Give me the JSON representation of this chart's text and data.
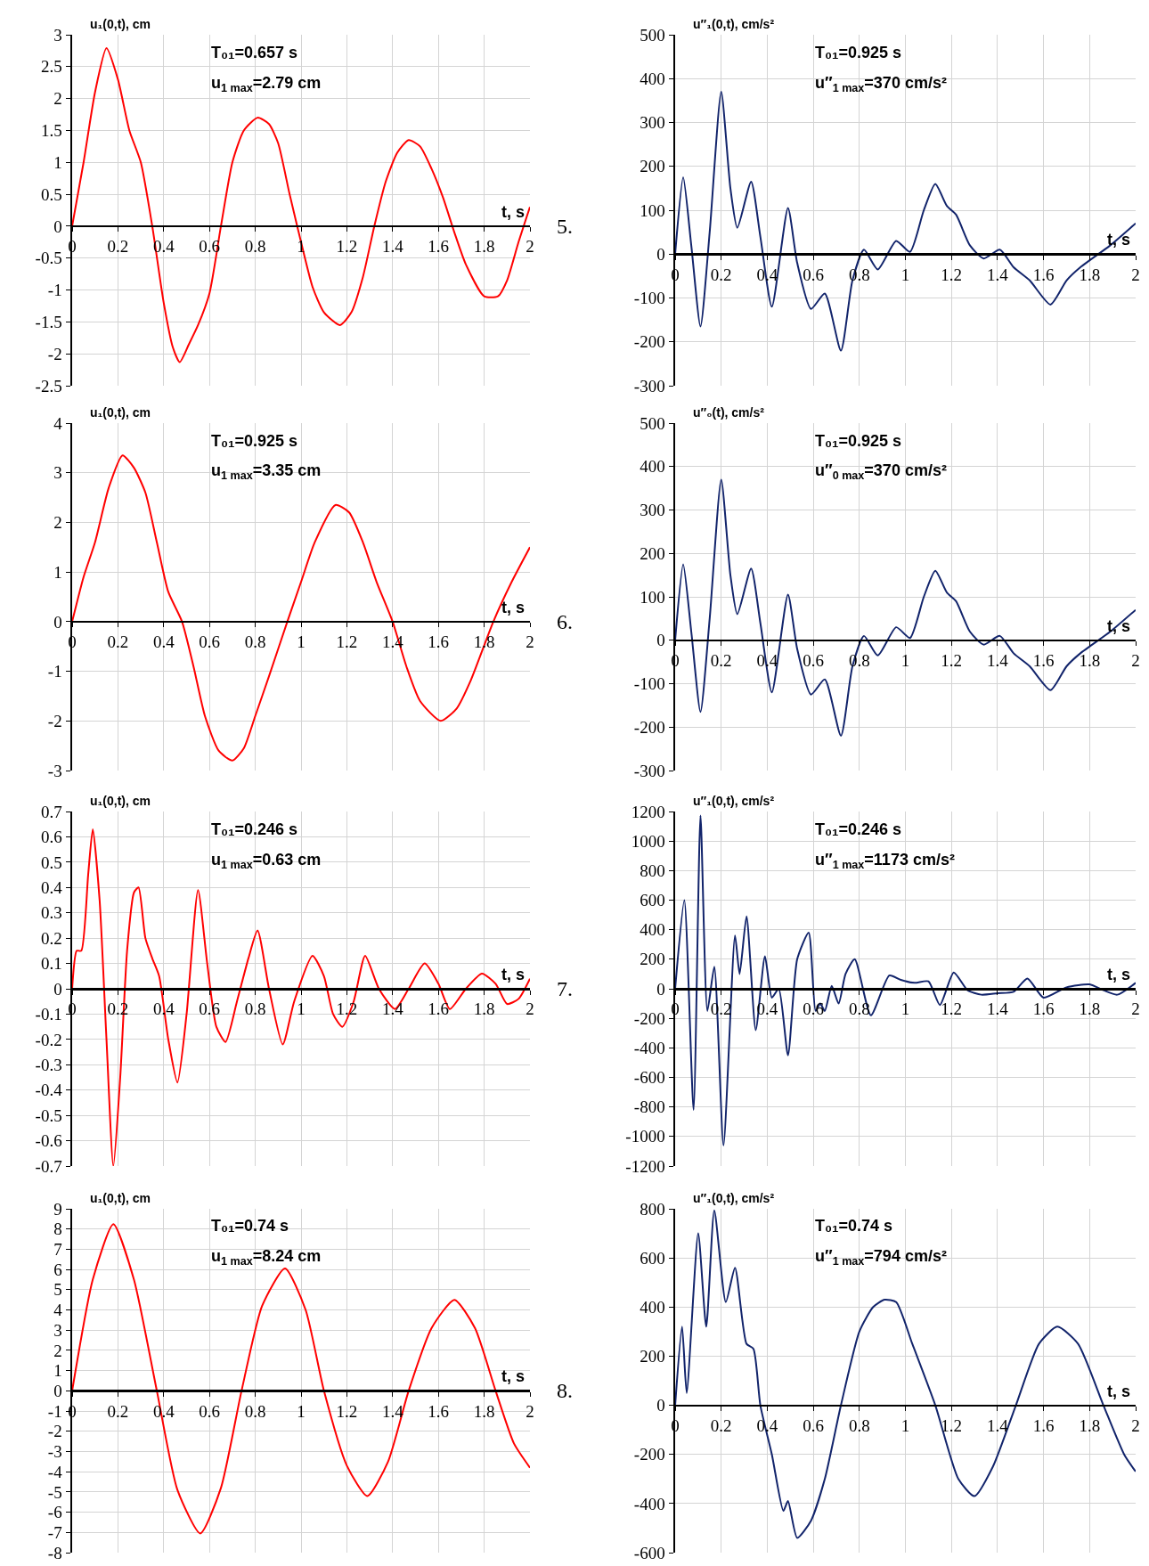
{
  "chart_data": [
    {
      "type": "line",
      "ylabel": "u₁(0,t), cm",
      "xlabel": "t, s",
      "xlim": [
        0,
        2
      ],
      "xticks": [
        0,
        0.2,
        0.4,
        0.6,
        0.8,
        1,
        1.2,
        1.4,
        1.6,
        1.8,
        2
      ],
      "ylim": [
        -2.5,
        3
      ],
      "yticks": [
        -2.5,
        -2,
        -1.5,
        -1,
        -0.5,
        0,
        0.5,
        1,
        1.5,
        2,
        2.5,
        3
      ],
      "grid": true,
      "annotations": [
        "T₀₁=0.657 s",
        "u$_{1 max}$=2.79 cm",
        "5."
      ],
      "series": [
        {
          "color": "#ff0000",
          "x": [
            0,
            0.05,
            0.1,
            0.15,
            0.2,
            0.25,
            0.3,
            0.35,
            0.4,
            0.44,
            0.47,
            0.51,
            0.55,
            0.6,
            0.65,
            0.7,
            0.75,
            0.81,
            0.86,
            0.9,
            0.95,
            1.0,
            1.05,
            1.1,
            1.17,
            1.22,
            1.27,
            1.32,
            1.37,
            1.42,
            1.47,
            1.52,
            1.57,
            1.62,
            1.67,
            1.72,
            1.8,
            1.86,
            1.9,
            1.95,
            2.0
          ],
          "values": [
            0,
            1.0,
            2.1,
            2.79,
            2.3,
            1.5,
            1.0,
            0,
            -1.2,
            -1.9,
            -2.13,
            -1.85,
            -1.55,
            -1.05,
            0,
            1.0,
            1.5,
            1.7,
            1.6,
            1.3,
            0.5,
            -0.25,
            -0.95,
            -1.35,
            -1.55,
            -1.35,
            -0.8,
            0,
            0.7,
            1.15,
            1.35,
            1.25,
            0.9,
            0.45,
            -0.1,
            -0.6,
            -1.1,
            -1.1,
            -0.85,
            -0.25,
            0.3
          ]
        }
      ]
    },
    {
      "type": "line",
      "ylabel": "u″₁(0,t), cm/s²",
      "xlabel": "t, s",
      "xlim": [
        0,
        2
      ],
      "xticks": [
        0,
        0.2,
        0.4,
        0.6,
        0.8,
        1,
        1.2,
        1.4,
        1.6,
        1.8,
        2
      ],
      "ylim": [
        -300,
        500
      ],
      "yticks": [
        -300,
        -200,
        -100,
        0,
        100,
        200,
        300,
        400,
        500
      ],
      "grid": true,
      "annotations": [
        "T₀₁=0.925 s",
        "u″$_{1 max}$=370 cm/s²"
      ],
      "series": [
        {
          "color": "#12246b",
          "x": [
            0,
            0.035,
            0.07,
            0.11,
            0.15,
            0.2,
            0.24,
            0.27,
            0.33,
            0.37,
            0.42,
            0.49,
            0.53,
            0.59,
            0.65,
            0.72,
            0.77,
            0.82,
            0.88,
            0.96,
            1.02,
            1.08,
            1.13,
            1.18,
            1.22,
            1.28,
            1.34,
            1.41,
            1.47,
            1.54,
            1.63,
            1.7,
            1.76,
            1.89,
            2.0
          ],
          "values": [
            0,
            175,
            20,
            -165,
            50,
            370,
            150,
            60,
            165,
            40,
            -120,
            105,
            -20,
            -125,
            -90,
            -220,
            -60,
            10,
            -35,
            30,
            5,
            100,
            160,
            110,
            90,
            20,
            -10,
            10,
            -30,
            -60,
            -115,
            -60,
            -30,
            20,
            70
          ]
        }
      ]
    },
    {
      "type": "line",
      "ylabel": "u₁(0,t), cm",
      "xlabel": "t, s",
      "xlim": [
        0,
        2
      ],
      "xticks": [
        0,
        0.2,
        0.4,
        0.6,
        0.8,
        1,
        1.2,
        1.4,
        1.6,
        1.8,
        2
      ],
      "ylim": [
        -3,
        4
      ],
      "yticks": [
        -3,
        -2,
        -1,
        0,
        1,
        2,
        3,
        4
      ],
      "grid": true,
      "annotations": [
        "T₀₁=0.925 s",
        "u$_{1 max}$=3.35 cm",
        "6."
      ],
      "series": [
        {
          "color": "#ff0000",
          "x": [
            0,
            0.05,
            0.1,
            0.16,
            0.22,
            0.27,
            0.32,
            0.37,
            0.42,
            0.48,
            0.53,
            0.58,
            0.64,
            0.7,
            0.75,
            0.8,
            0.86,
            0.94,
            1.0,
            1.06,
            1.15,
            1.21,
            1.27,
            1.33,
            1.4,
            1.46,
            1.52,
            1.61,
            1.68,
            1.74,
            1.84,
            1.92,
            2.0
          ],
          "values": [
            0,
            0.9,
            1.6,
            2.7,
            3.35,
            3.1,
            2.6,
            1.6,
            0.6,
            0,
            -0.9,
            -1.9,
            -2.6,
            -2.8,
            -2.55,
            -1.9,
            -1.1,
            0,
            0.8,
            1.6,
            2.35,
            2.2,
            1.6,
            0.8,
            0,
            -0.9,
            -1.6,
            -2.0,
            -1.75,
            -1.2,
            0,
            0.8,
            1.5
          ]
        }
      ]
    },
    {
      "type": "line",
      "ylabel": "u″₀(t), cm/s²",
      "xlabel": "t, s",
      "xlim": [
        0,
        2
      ],
      "xticks": [
        0,
        0.2,
        0.4,
        0.6,
        0.8,
        1,
        1.2,
        1.4,
        1.6,
        1.8,
        2
      ],
      "ylim": [
        -300,
        500
      ],
      "yticks": [
        -300,
        -200,
        -100,
        0,
        100,
        200,
        300,
        400,
        500
      ],
      "grid": true,
      "annotations": [
        "T₀₁=0.925 s",
        "u″$_{0 max}$=370 cm/s²"
      ],
      "series": [
        {
          "color": "#12246b",
          "x": [
            0,
            0.035,
            0.07,
            0.11,
            0.15,
            0.2,
            0.24,
            0.27,
            0.33,
            0.37,
            0.42,
            0.49,
            0.53,
            0.59,
            0.65,
            0.72,
            0.77,
            0.82,
            0.88,
            0.96,
            1.02,
            1.08,
            1.13,
            1.18,
            1.22,
            1.28,
            1.34,
            1.41,
            1.47,
            1.54,
            1.63,
            1.7,
            1.76,
            1.89,
            2.0
          ],
          "values": [
            0,
            175,
            20,
            -165,
            50,
            370,
            150,
            60,
            165,
            40,
            -120,
            105,
            -20,
            -125,
            -90,
            -220,
            -60,
            10,
            -35,
            30,
            5,
            100,
            160,
            110,
            90,
            20,
            -10,
            10,
            -30,
            -60,
            -115,
            -60,
            -30,
            20,
            70
          ]
        }
      ]
    },
    {
      "type": "line",
      "ylabel": "u₁(0,t), cm",
      "xlabel": "t, s",
      "xlim": [
        0,
        2
      ],
      "xticks": [
        0,
        0.2,
        0.4,
        0.6,
        0.8,
        1,
        1.2,
        1.4,
        1.6,
        1.8,
        2
      ],
      "ylim": [
        -0.7,
        0.7
      ],
      "yticks": [
        -0.7,
        -0.6,
        -0.5,
        -0.4,
        -0.3,
        -0.2,
        -0.1,
        0,
        0.1,
        0.2,
        0.3,
        0.4,
        0.5,
        0.6,
        0.7
      ],
      "grid": true,
      "annotations": [
        "T₀₁=0.246 s",
        "u$_{1 max}$=0.63 cm",
        "7."
      ],
      "series": [
        {
          "color": "#ff0000",
          "x": [
            0,
            0.02,
            0.04,
            0.07,
            0.09,
            0.12,
            0.15,
            0.18,
            0.21,
            0.24,
            0.27,
            0.29,
            0.32,
            0.35,
            0.38,
            0.42,
            0.46,
            0.5,
            0.55,
            0.59,
            0.63,
            0.67,
            0.72,
            0.77,
            0.81,
            0.86,
            0.92,
            0.97,
            1.05,
            1.1,
            1.14,
            1.18,
            1.23,
            1.28,
            1.34,
            1.41,
            1.47,
            1.54,
            1.6,
            1.65,
            1.72,
            1.79,
            1.85,
            1.9,
            1.95,
            2.0
          ],
          "values": [
            0,
            0.15,
            0.15,
            0.45,
            0.63,
            0.35,
            -0.2,
            -0.7,
            -0.35,
            0.15,
            0.38,
            0.4,
            0.2,
            0.12,
            0.05,
            -0.2,
            -0.37,
            -0.1,
            0.39,
            0.1,
            -0.15,
            -0.21,
            -0.05,
            0.12,
            0.23,
            0,
            -0.22,
            -0.05,
            0.13,
            0.05,
            -0.1,
            -0.15,
            -0.05,
            0.13,
            0,
            -0.08,
            0,
            0.1,
            0.02,
            -0.08,
            0,
            0.06,
            0.02,
            -0.06,
            -0.04,
            0.04
          ]
        }
      ]
    },
    {
      "type": "line",
      "ylabel": "u″₁(0,t), cm/s²",
      "xlabel": "t, s",
      "xlim": [
        0,
        2
      ],
      "xticks": [
        0,
        0.2,
        0.4,
        0.6,
        0.8,
        1,
        1.2,
        1.4,
        1.6,
        1.8,
        2
      ],
      "ylim": [
        -1200,
        1200
      ],
      "yticks": [
        -1200,
        -1000,
        -800,
        -600,
        -400,
        -200,
        0,
        200,
        400,
        600,
        800,
        1000,
        1200
      ],
      "grid": true,
      "annotations": [
        "T₀₁=0.246 s",
        "u″$_{1 max}$=1173 cm/s²"
      ],
      "series": [
        {
          "color": "#12246b",
          "x": [
            0,
            0.04,
            0.08,
            0.11,
            0.14,
            0.17,
            0.21,
            0.26,
            0.28,
            0.31,
            0.35,
            0.39,
            0.42,
            0.45,
            0.49,
            0.53,
            0.58,
            0.61,
            0.63,
            0.65,
            0.68,
            0.71,
            0.74,
            0.78,
            0.85,
            0.93,
            0.98,
            1.04,
            1.1,
            1.15,
            1.21,
            1.27,
            1.33,
            1.4,
            1.47,
            1.53,
            1.6,
            1.7,
            1.8,
            1.86,
            1.92,
            2.0
          ],
          "values": [
            0,
            600,
            -820,
            1173,
            -150,
            150,
            -1060,
            360,
            100,
            490,
            -280,
            220,
            -60,
            0,
            -450,
            200,
            380,
            -150,
            -100,
            -150,
            20,
            -100,
            100,
            200,
            -180,
            90,
            60,
            40,
            50,
            -110,
            110,
            -10,
            -40,
            -30,
            -20,
            70,
            -60,
            10,
            30,
            -10,
            -40,
            40
          ]
        }
      ]
    },
    {
      "type": "line",
      "ylabel": "u₁(0,t), cm",
      "xlabel": "t, s",
      "xlim": [
        0,
        2
      ],
      "xticks": [
        0,
        0.2,
        0.4,
        0.6,
        0.8,
        1,
        1.2,
        1.4,
        1.6,
        1.8,
        2
      ],
      "ylim": [
        -8,
        9
      ],
      "yticks": [
        -8,
        -7,
        -6,
        -5,
        -4,
        -3,
        -2,
        -1,
        0,
        1,
        2,
        3,
        4,
        5,
        6,
        7,
        8,
        9
      ],
      "grid": true,
      "annotations": [
        "T₀₁=0.74 s",
        "u$_{1 max}$=8.24 cm",
        "8."
      ],
      "series": [
        {
          "color": "#ff0000",
          "x": [
            0,
            0.09,
            0.18,
            0.27,
            0.37,
            0.46,
            0.56,
            0.65,
            0.74,
            0.83,
            0.93,
            1.02,
            1.1,
            1.2,
            1.29,
            1.38,
            1.47,
            1.57,
            1.67,
            1.76,
            1.85,
            1.93,
            2.0
          ],
          "values": [
            0,
            5.5,
            8.24,
            5.5,
            0,
            -4.9,
            -7.05,
            -4.8,
            0,
            4.2,
            6.05,
            4.0,
            0,
            -3.7,
            -5.2,
            -3.5,
            0,
            3.1,
            4.5,
            3.1,
            0,
            -2.6,
            -3.8
          ]
        }
      ]
    },
    {
      "type": "line",
      "ylabel": "u″₁(0,t), cm/s²",
      "xlabel": "t, s",
      "xlim": [
        0,
        2
      ],
      "xticks": [
        0,
        0.2,
        0.4,
        0.6,
        0.8,
        1,
        1.2,
        1.4,
        1.6,
        1.8,
        2
      ],
      "ylim": [
        -600,
        800
      ],
      "yticks": [
        -600,
        -400,
        -200,
        0,
        200,
        400,
        600,
        800
      ],
      "grid": true,
      "annotations": [
        "T₀₁=0.74 s",
        "u″$_{1 max}$=794 cm/s²"
      ],
      "series": [
        {
          "color": "#12246b",
          "x": [
            0,
            0.03,
            0.05,
            0.1,
            0.135,
            0.17,
            0.22,
            0.26,
            0.31,
            0.34,
            0.37,
            0.42,
            0.47,
            0.49,
            0.53,
            0.59,
            0.65,
            0.72,
            0.8,
            0.86,
            0.91,
            0.96,
            1.03,
            1.13,
            1.23,
            1.3,
            1.38,
            1.48,
            1.58,
            1.66,
            1.75,
            1.86,
            1.95,
            2.0
          ],
          "values": [
            0,
            320,
            50,
            700,
            320,
            794,
            420,
            560,
            250,
            230,
            0,
            -200,
            -430,
            -390,
            -540,
            -470,
            -300,
            0,
            300,
            400,
            430,
            420,
            250,
            0,
            -300,
            -370,
            -250,
            0,
            250,
            320,
            250,
            0,
            -200,
            -270
          ]
        }
      ]
    }
  ]
}
